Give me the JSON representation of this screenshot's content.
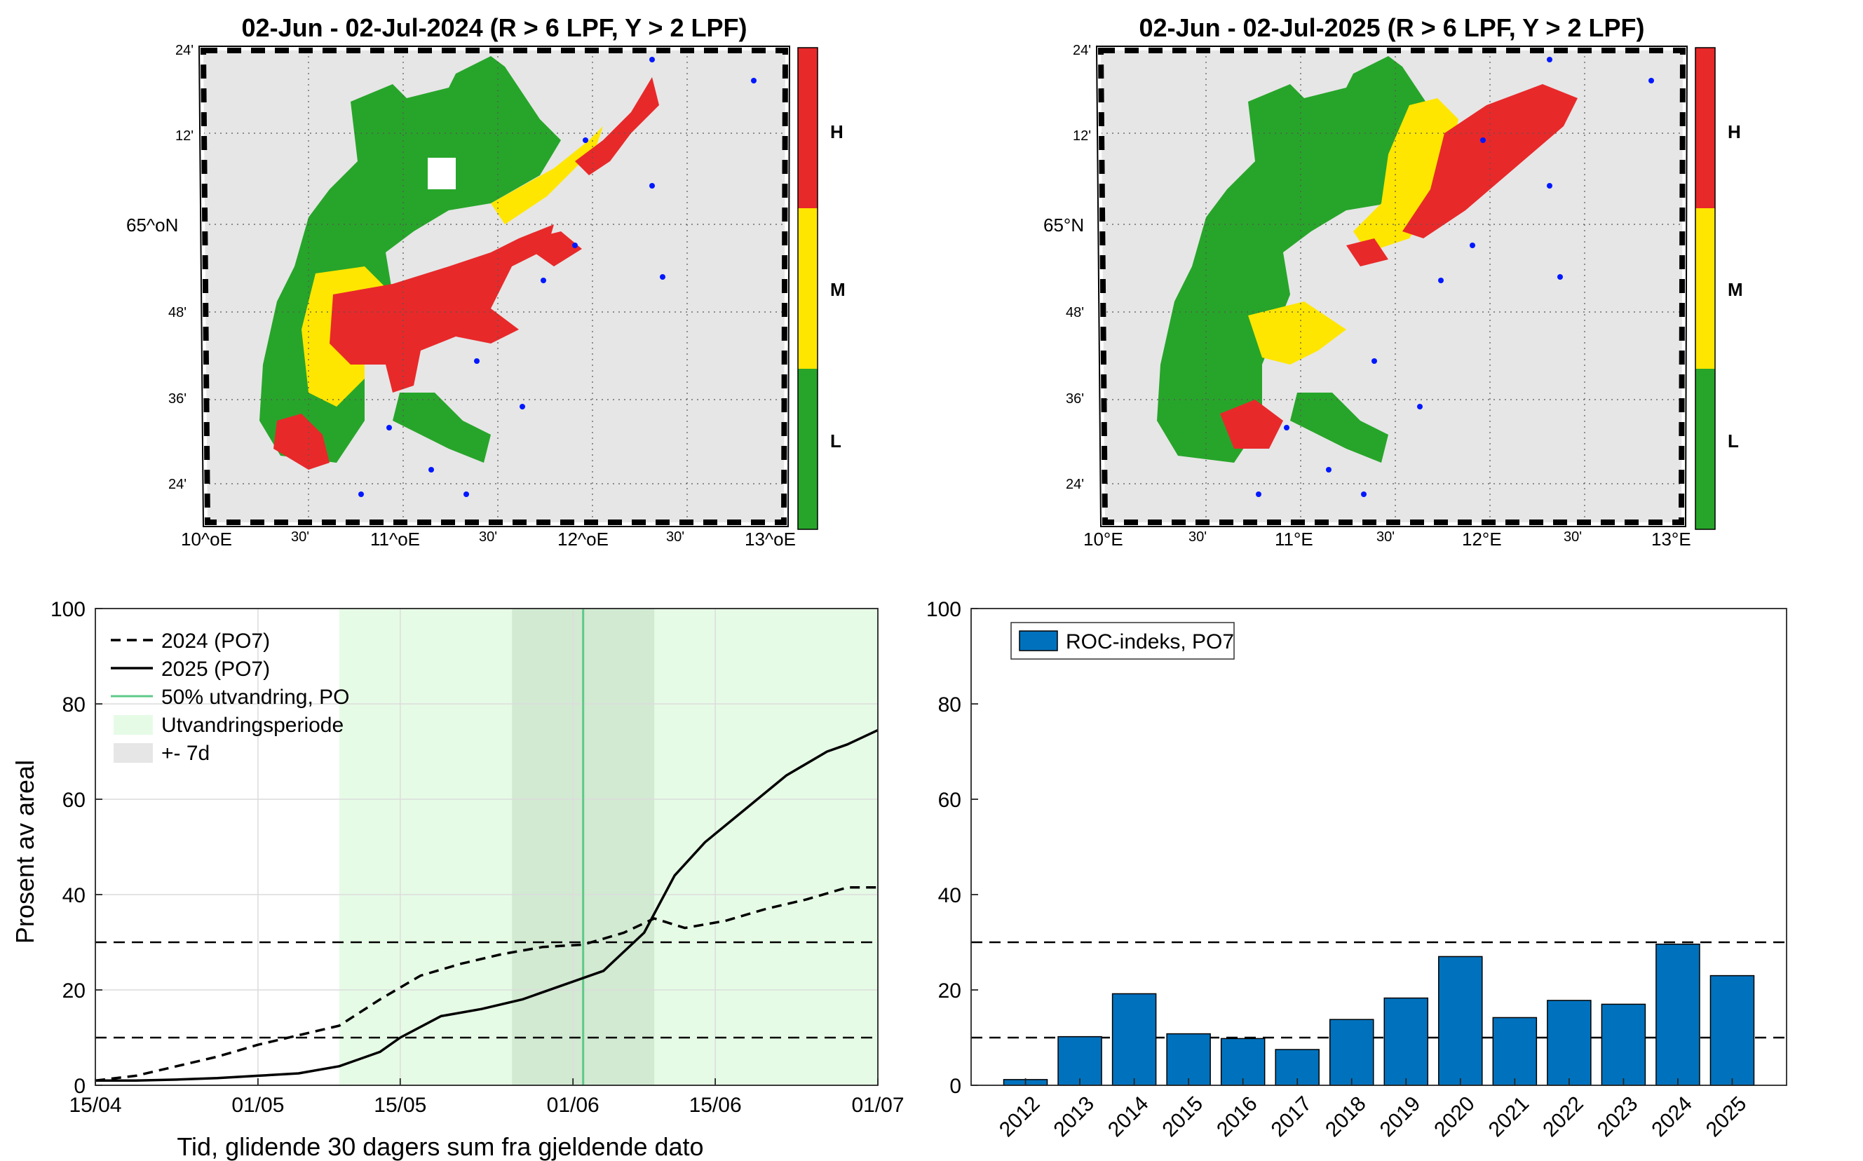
{
  "maps": [
    {
      "title": "02-Jun - 02-Jul-2024  (R > 6 LPF, Y > 2 LPF)",
      "lat_labels": [
        "24'",
        "12'",
        "65^oN",
        "48'",
        "36'",
        "24'"
      ],
      "lon_labels": [
        "10^oE",
        "30'",
        "11^oE",
        "30'",
        "12^oE",
        "30'",
        "13^oE"
      ],
      "colorbar": [
        "H",
        "M",
        "L"
      ]
    },
    {
      "title": "02-Jun - 02-Jul-2025  (R > 6 LPF, Y > 2 LPF)",
      "lat_labels": [
        "24'",
        "12'",
        "65°N",
        "48'",
        "36'",
        "24'"
      ],
      "lon_labels": [
        "10°E",
        "30'",
        "11°E",
        "30'",
        "12°E",
        "30'",
        "13°E"
      ],
      "colorbar": [
        "H",
        "M",
        "L"
      ]
    }
  ],
  "colors": {
    "red": "#e8292a",
    "yellow": "#ffe600",
    "green": "#27a52a",
    "land": "#e6e6e6",
    "light_green": "#e6fbe6",
    "band": "#d2e9d2",
    "line_green": "#5fc98a",
    "bar": "#0072bd"
  },
  "chart_data": [
    {
      "type": "line",
      "xlabel": "Tid, glidende 30 dagers sum fra gjeldende dato",
      "ylabel": "Prosent av areal",
      "xlim": [
        0,
        77
      ],
      "ylim": [
        0,
        100
      ],
      "x_tick_values": [
        0,
        16,
        30,
        47,
        61,
        77
      ],
      "x_tick_labels": [
        "15/04",
        "01/05",
        "15/05",
        "01/06",
        "15/06",
        "01/07"
      ],
      "y_tick_labels": [
        "0",
        "20",
        "40",
        "60",
        "80",
        "100"
      ],
      "y_ticks": [
        0,
        20,
        40,
        60,
        80,
        100
      ],
      "thresholds": [
        10,
        30
      ],
      "utvandringsperiode": [
        24,
        77
      ],
      "plus_minus_7d": [
        41,
        55
      ],
      "utvandring_50pct_day": 48,
      "series": [
        {
          "name": "2024 (PO7)",
          "style": "dashed",
          "x": [
            0,
            4,
            8,
            12,
            16,
            20,
            24,
            28,
            32,
            36,
            40,
            44,
            48,
            52,
            55,
            58,
            62,
            66,
            70,
            74,
            77
          ],
          "values": [
            1,
            2,
            4,
            6,
            8.5,
            10.5,
            12.5,
            18,
            23,
            25.5,
            27.5,
            29,
            29.5,
            32,
            35,
            33,
            34.5,
            37,
            39,
            41.5,
            41.5
          ]
        },
        {
          "name": "2025 (PO7)",
          "style": "solid",
          "x": [
            0,
            4,
            8,
            12,
            16,
            20,
            24,
            28,
            30,
            34,
            38,
            42,
            46,
            50,
            54,
            57,
            60,
            64,
            68,
            72,
            74,
            77
          ],
          "values": [
            1,
            1,
            1.2,
            1.5,
            2,
            2.5,
            4,
            7,
            10,
            14.5,
            16,
            18,
            21,
            24,
            32,
            44,
            51,
            58,
            65,
            70,
            71.5,
            74.5
          ]
        }
      ],
      "legend": [
        "2024 (PO7)",
        "2025 (PO7)",
        "50% utvandring, PO",
        "Utvandringsperiode",
        "+- 7d"
      ]
    },
    {
      "type": "bar",
      "categories": [
        "2012",
        "2013",
        "2014",
        "2015",
        "2016",
        "2017",
        "2018",
        "2019",
        "2020",
        "2021",
        "2022",
        "2023",
        "2024",
        "2025"
      ],
      "values": [
        1.2,
        10.2,
        19.2,
        10.8,
        9.8,
        7.5,
        13.8,
        18.3,
        27,
        14.2,
        17.8,
        17,
        29.6,
        23
      ],
      "ylim": [
        0,
        100
      ],
      "y_tick_labels": [
        "0",
        "20",
        "40",
        "60",
        "80",
        "100"
      ],
      "y_ticks": [
        0,
        20,
        40,
        60,
        80,
        100
      ],
      "thresholds": [
        10,
        30
      ],
      "legend": [
        "ROC-indeks, PO7"
      ]
    }
  ]
}
